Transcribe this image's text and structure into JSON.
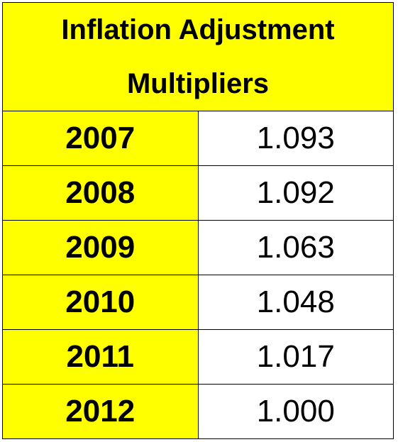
{
  "title": "Inflation Adjustment Multipliers",
  "rows": [
    {
      "year": "2007",
      "multiplier": "1.093"
    },
    {
      "year": "2008",
      "multiplier": "1.092"
    },
    {
      "year": "2009",
      "multiplier": "1.063"
    },
    {
      "year": "2010",
      "multiplier": "1.048"
    },
    {
      "year": "2011",
      "multiplier": "1.017"
    },
    {
      "year": "2012",
      "multiplier": "1.000"
    }
  ],
  "colors": {
    "header_fill": "#ffff00",
    "year_fill": "#ffff00",
    "value_fill": "#ffffff",
    "border": "#000000"
  }
}
